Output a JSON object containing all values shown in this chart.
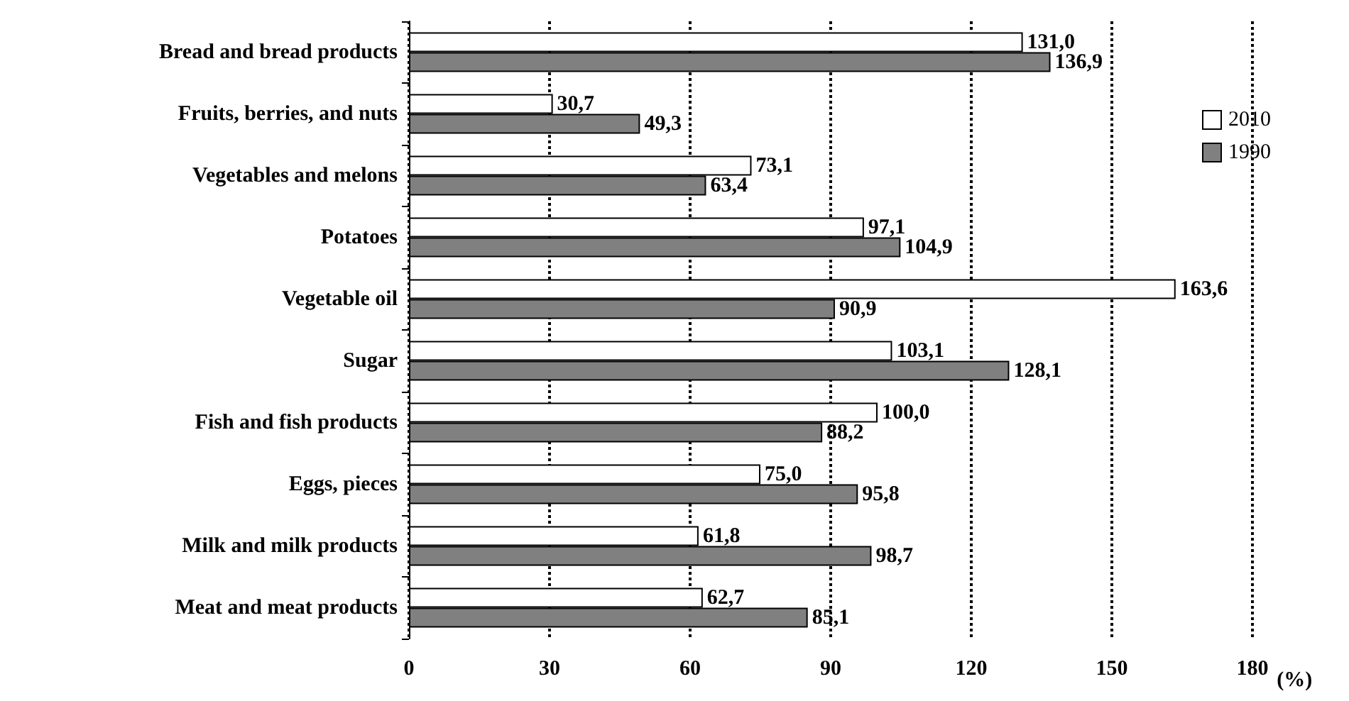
{
  "chart_data": {
    "type": "bar",
    "orientation": "horizontal",
    "xlabel": "(%)",
    "categories": [
      "Bread and bread products",
      "Fruits, berries, and nuts",
      "Vegetables and melons",
      "Potatoes",
      "Vegetable oil",
      "Sugar",
      "Fish and fish products",
      "Eggs, pieces",
      "Milk and milk products",
      "Meat and meat products"
    ],
    "series": [
      {
        "name": "2010",
        "color": "#ffffff",
        "values": [
          131.0,
          30.7,
          73.1,
          97.1,
          163.6,
          103.1,
          100.0,
          75.0,
          61.8,
          62.7
        ],
        "value_labels": [
          "131,0",
          "30,7",
          "73,1",
          "97,1",
          "163,6",
          "103,1",
          "100,0",
          "75,0",
          "61,8",
          "62,7"
        ]
      },
      {
        "name": "1990",
        "color": "#808080",
        "values": [
          136.9,
          49.3,
          63.4,
          104.9,
          90.9,
          128.1,
          88.2,
          95.8,
          98.7,
          85.1
        ],
        "value_labels": [
          "136,9",
          "49,3",
          "63,4",
          "104,9",
          "90,9",
          "128,1",
          "88,2",
          "95,8",
          "98,7",
          "85,1"
        ]
      }
    ],
    "xlim": [
      0,
      180
    ],
    "xticks": [
      0,
      30,
      60,
      90,
      120,
      150,
      180
    ],
    "grid": "x",
    "legend": "right"
  }
}
